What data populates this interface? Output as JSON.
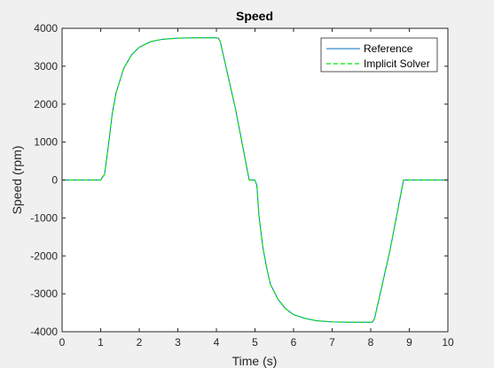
{
  "chart_data": {
    "type": "line",
    "title": "Speed",
    "xlabel": "Time (s)",
    "ylabel": "Speed (rpm)",
    "xlim": [
      0,
      10
    ],
    "ylim": [
      -4000,
      4000
    ],
    "xticks": [
      0,
      1,
      2,
      3,
      4,
      5,
      6,
      7,
      8,
      9,
      10
    ],
    "yticks": [
      -4000,
      -3000,
      -2000,
      -1000,
      0,
      1000,
      2000,
      3000,
      4000
    ],
    "xtick_labels": [
      "0",
      "1",
      "2",
      "3",
      "4",
      "5",
      "6",
      "7",
      "8",
      "9",
      "10"
    ],
    "ytick_labels": [
      "-4000",
      "-3000",
      "-2000",
      "-1000",
      "0",
      "1000",
      "2000",
      "3000",
      "4000"
    ],
    "grid": false,
    "legend_position": "top-right",
    "x": [
      0,
      1.0,
      1.1,
      1.2,
      1.3,
      1.4,
      1.6,
      1.8,
      2.0,
      2.3,
      2.6,
      3.0,
      3.5,
      4.0,
      4.05,
      4.1,
      4.5,
      4.85,
      5.0,
      5.05,
      5.1,
      5.2,
      5.3,
      5.4,
      5.6,
      5.8,
      6.0,
      6.3,
      6.6,
      7.0,
      7.5,
      8.0,
      8.05,
      8.1,
      8.5,
      8.85,
      9.0,
      10.0
    ],
    "series": [
      {
        "name": "Reference",
        "color": "#0072bd",
        "style": "solid",
        "values": [
          0,
          0,
          150,
          900,
          1750,
          2300,
          2950,
          3300,
          3500,
          3650,
          3710,
          3740,
          3750,
          3750,
          3740,
          3650,
          1850,
          0,
          0,
          -150,
          -900,
          -1750,
          -2300,
          -2750,
          -3150,
          -3400,
          -3550,
          -3650,
          -3710,
          -3740,
          -3750,
          -3750,
          -3740,
          -3650,
          -1850,
          0,
          0,
          0
        ]
      },
      {
        "name": "Implicit Solver",
        "color": "#00e600",
        "style": "dashed",
        "values": [
          0,
          0,
          150,
          900,
          1750,
          2300,
          2950,
          3300,
          3500,
          3650,
          3710,
          3740,
          3750,
          3750,
          3740,
          3650,
          1850,
          0,
          0,
          -150,
          -900,
          -1750,
          -2300,
          -2750,
          -3150,
          -3400,
          -3550,
          -3650,
          -3710,
          -3740,
          -3750,
          -3750,
          -3740,
          -3650,
          -1850,
          0,
          0,
          0
        ]
      }
    ]
  }
}
